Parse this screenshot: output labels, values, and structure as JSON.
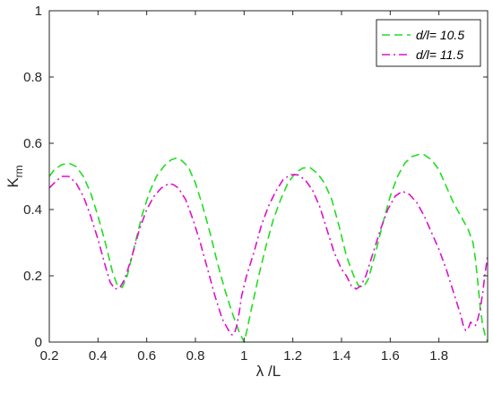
{
  "chart_data": {
    "type": "line",
    "title": "",
    "xlabel": "λ /L",
    "ylabel": "K",
    "ylabel_subscript": "rm",
    "xlim": [
      0.2,
      2.0
    ],
    "ylim": [
      0,
      1
    ],
    "xticks": [
      "0.2",
      "0.4",
      "0.6",
      "0.8",
      "1",
      "1.2",
      "1.4",
      "1.6",
      "1.8"
    ],
    "xtick_values": [
      0.2,
      0.4,
      0.6,
      0.8,
      1.0,
      1.2,
      1.4,
      1.6,
      1.8
    ],
    "yticks": [
      "0",
      "0.2",
      "0.4",
      "0.6",
      "0.8",
      "1"
    ],
    "ytick_values": [
      0,
      0.2,
      0.4,
      0.6,
      0.8,
      1.0
    ],
    "grid": false,
    "legend_position": "top-right",
    "series": [
      {
        "name": "d/l= 10.5",
        "color": "#22dd22",
        "style": "dashed",
        "x": [
          0.2,
          0.22,
          0.25,
          0.28,
          0.31,
          0.34,
          0.37,
          0.4,
          0.43,
          0.46,
          0.48,
          0.5,
          0.52,
          0.55,
          0.58,
          0.61,
          0.64,
          0.67,
          0.7,
          0.72,
          0.74,
          0.77,
          0.8,
          0.83,
          0.86,
          0.89,
          0.92,
          0.95,
          0.97,
          0.98,
          0.99,
          1.0,
          1.01,
          1.03,
          1.06,
          1.09,
          1.12,
          1.15,
          1.18,
          1.21,
          1.24,
          1.27,
          1.3,
          1.33,
          1.36,
          1.39,
          1.42,
          1.45,
          1.47,
          1.49,
          1.51,
          1.54,
          1.57,
          1.6,
          1.63,
          1.66,
          1.69,
          1.72,
          1.74,
          1.77,
          1.8,
          1.83,
          1.86,
          1.89,
          1.92,
          1.94,
          1.95,
          1.96,
          1.97,
          1.98,
          1.99,
          2.0
        ],
        "y": [
          0.5,
          0.52,
          0.535,
          0.54,
          0.53,
          0.5,
          0.45,
          0.38,
          0.3,
          0.21,
          0.17,
          0.165,
          0.2,
          0.29,
          0.38,
          0.45,
          0.5,
          0.53,
          0.55,
          0.555,
          0.55,
          0.53,
          0.48,
          0.41,
          0.33,
          0.24,
          0.16,
          0.09,
          0.05,
          0.03,
          0.015,
          0.0,
          0.03,
          0.1,
          0.2,
          0.29,
          0.37,
          0.43,
          0.48,
          0.51,
          0.525,
          0.527,
          0.51,
          0.48,
          0.43,
          0.35,
          0.26,
          0.2,
          0.17,
          0.165,
          0.19,
          0.27,
          0.36,
          0.44,
          0.5,
          0.54,
          0.56,
          0.567,
          0.565,
          0.55,
          0.52,
          0.47,
          0.42,
          0.38,
          0.34,
          0.3,
          0.25,
          0.18,
          0.1,
          0.05,
          0.02,
          0.0
        ]
      },
      {
        "name": "d/l= 11.5",
        "color": "#dd11cc",
        "style": "dashdot",
        "x": [
          0.2,
          0.22,
          0.25,
          0.28,
          0.31,
          0.34,
          0.37,
          0.4,
          0.43,
          0.45,
          0.47,
          0.49,
          0.51,
          0.54,
          0.57,
          0.6,
          0.63,
          0.66,
          0.69,
          0.71,
          0.73,
          0.76,
          0.79,
          0.82,
          0.85,
          0.88,
          0.91,
          0.94,
          0.95,
          0.96,
          0.97,
          0.98,
          0.99,
          1.01,
          1.04,
          1.07,
          1.1,
          1.13,
          1.16,
          1.19,
          1.22,
          1.25,
          1.28,
          1.31,
          1.34,
          1.37,
          1.4,
          1.42,
          1.44,
          1.46,
          1.48,
          1.5,
          1.53,
          1.56,
          1.59,
          1.62,
          1.65,
          1.68,
          1.71,
          1.74,
          1.77,
          1.8,
          1.83,
          1.86,
          1.89,
          1.9,
          1.91,
          1.92,
          1.93,
          1.94,
          1.95,
          1.96,
          1.97,
          1.98,
          1.99,
          2.0
        ],
        "y": [
          0.465,
          0.48,
          0.5,
          0.5,
          0.48,
          0.44,
          0.38,
          0.31,
          0.23,
          0.18,
          0.16,
          0.165,
          0.19,
          0.26,
          0.34,
          0.4,
          0.44,
          0.465,
          0.478,
          0.475,
          0.465,
          0.43,
          0.37,
          0.3,
          0.22,
          0.14,
          0.07,
          0.03,
          0.022,
          0.025,
          0.05,
          0.09,
          0.14,
          0.2,
          0.27,
          0.35,
          0.41,
          0.455,
          0.49,
          0.505,
          0.505,
          0.49,
          0.46,
          0.41,
          0.34,
          0.27,
          0.22,
          0.2,
          0.17,
          0.16,
          0.17,
          0.2,
          0.27,
          0.34,
          0.4,
          0.44,
          0.455,
          0.445,
          0.42,
          0.38,
          0.33,
          0.28,
          0.22,
          0.15,
          0.08,
          0.05,
          0.035,
          0.04,
          0.06,
          0.055,
          0.05,
          0.07,
          0.1,
          0.15,
          0.21,
          0.26
        ]
      }
    ]
  }
}
